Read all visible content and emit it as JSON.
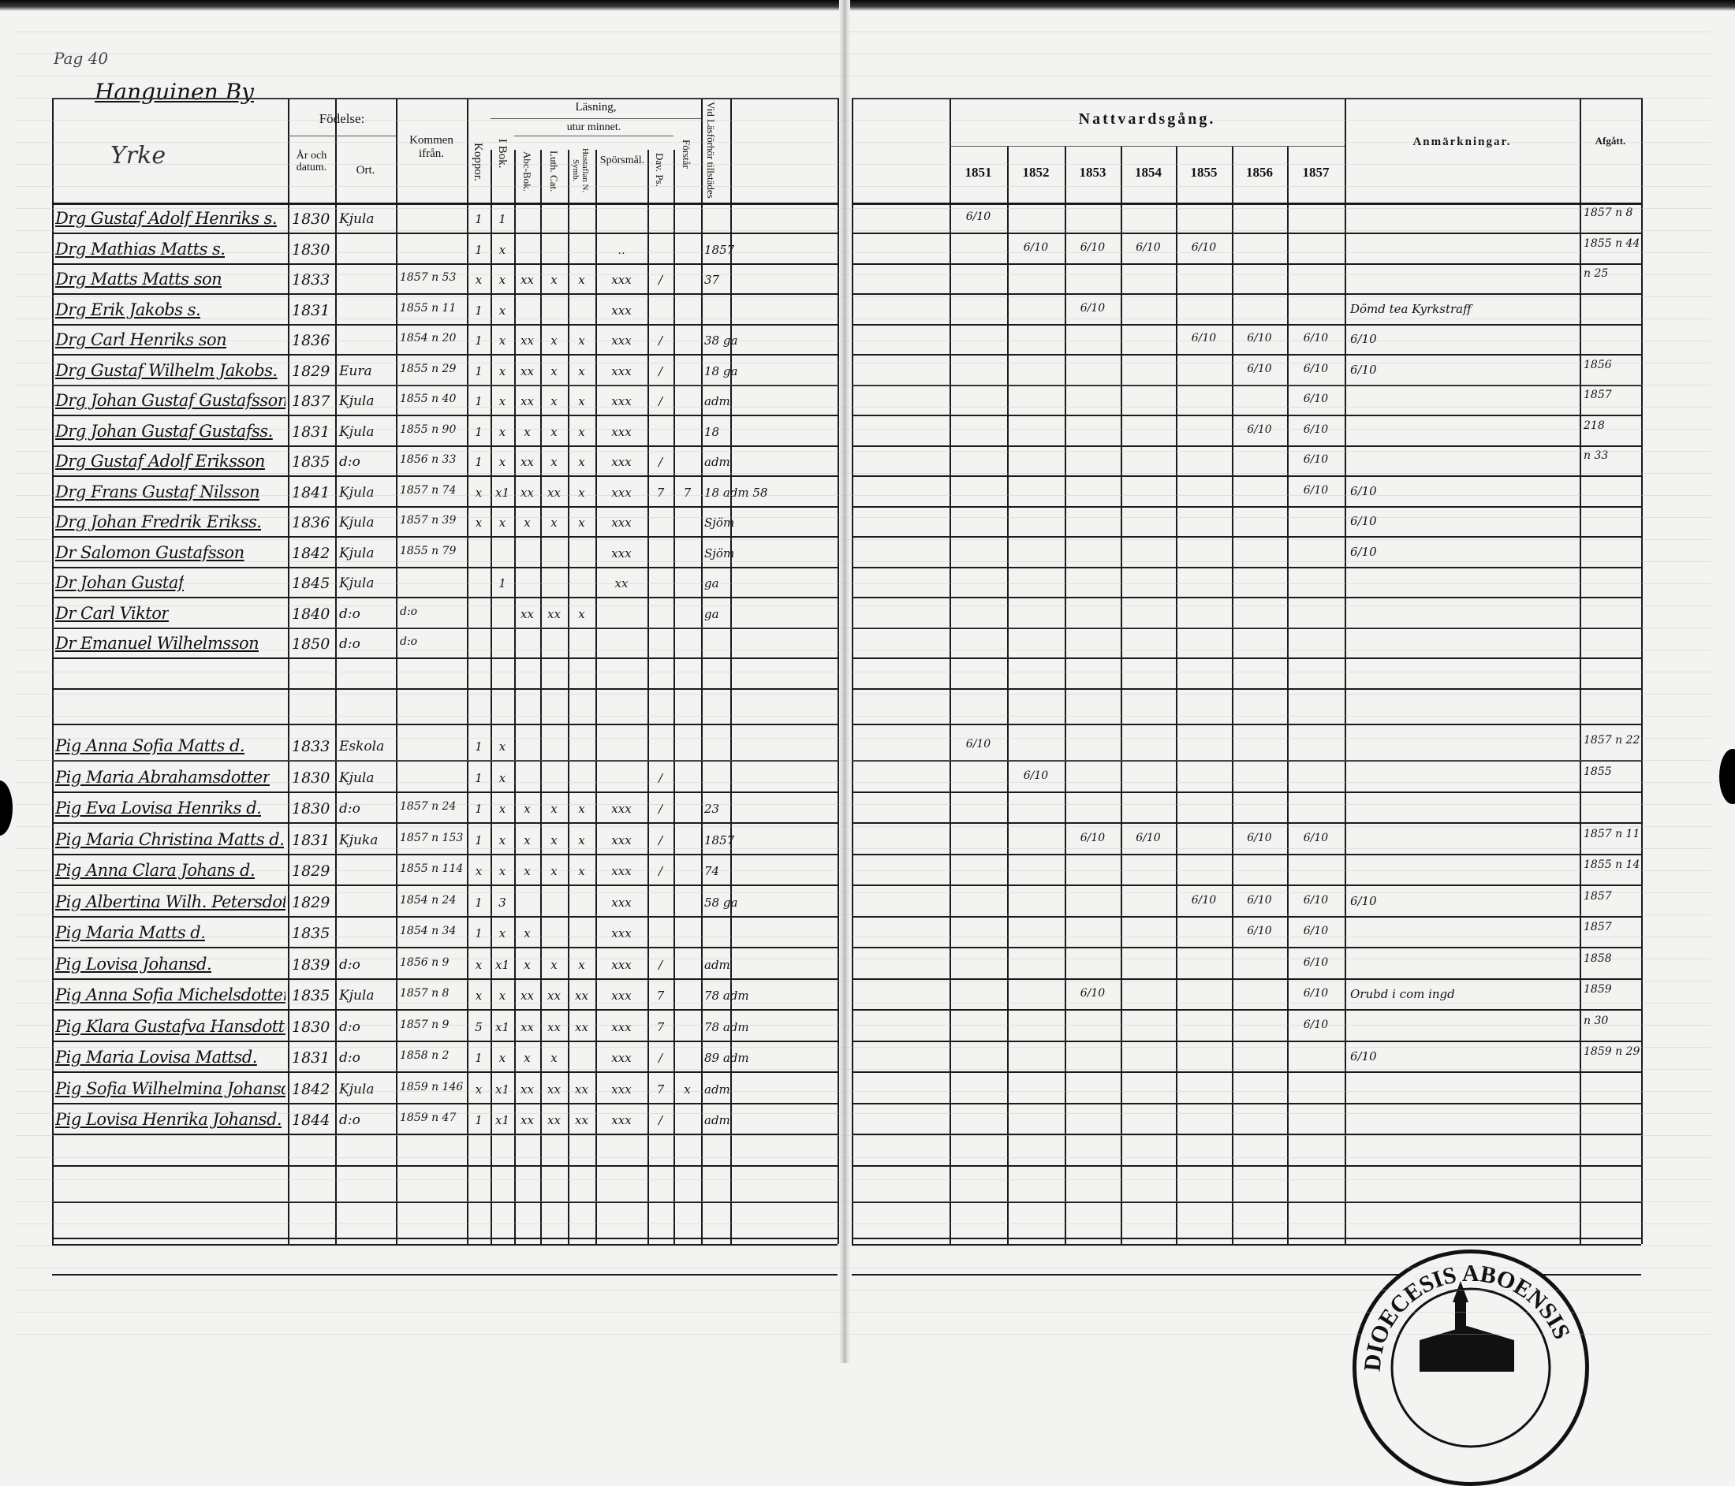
{
  "page": {
    "page_note": "Pag 40",
    "village": "Hanguinen By"
  },
  "left_header": {
    "yrke": "Yrke",
    "fodelse": "Födelse:",
    "ar_och_datum": "År och datum.",
    "ort": "Ort.",
    "kommen_ifran": "Kommen ifrån.",
    "koppor": "Koppor.",
    "lasning": "Läsning,",
    "i_bok": "I Bok.",
    "utur_minnet": "utur minnet.",
    "abc_bok": "Abc-Bok.",
    "luth_cat": "Luth. Cat.",
    "hustaflan": "Hustaflan N. Symb.",
    "sporsmal": "Spörsmål.",
    "dav_ps": "Dav. Ps.",
    "forstar": "Förstår",
    "vid_lasforhor": "Vid Läsförhör tillstädes"
  },
  "right_header": {
    "nattvardsgang": "Nattvardsgång.",
    "years": [
      "1851",
      "1852",
      "1853",
      "1854",
      "1855",
      "1856",
      "1857"
    ],
    "anmarkningar": "Anmärkningar.",
    "afgatt": "Afgått."
  },
  "men": [
    {
      "name": "Drg Gustaf Adolf Henriks s.",
      "born": "1830",
      "place": "Kjula",
      "arrived": "",
      "marks": [
        "1",
        "1",
        "",
        "",
        "",
        "",
        "",
        ""
      ],
      "vid": "",
      "nattvard": [
        "6/10",
        "",
        "",
        "",
        "",
        "",
        ""
      ],
      "remark": "",
      "afgatt": "1857 n 8"
    },
    {
      "name": "Drg Mathias Matts s.",
      "born": "1830",
      "place": "",
      "arrived": "",
      "marks": [
        "1",
        "x",
        "",
        "",
        "",
        "..",
        "",
        ""
      ],
      "vid": "1857",
      "nattvard": [
        "",
        "6/10",
        "6/10",
        "6/10",
        "6/10",
        "",
        ""
      ],
      "remark": "",
      "afgatt": "1855 n 44"
    },
    {
      "name": "Drg Matts Matts son",
      "born": "1833",
      "place": "",
      "arrived": "1857 n 53",
      "marks": [
        "x",
        "x",
        "xx",
        "x",
        "x",
        "xxx",
        "/",
        ""
      ],
      "vid": "37",
      "nattvard": [
        "",
        "",
        "",
        "",
        "",
        "",
        ""
      ],
      "remark": "",
      "afgatt": "n 25"
    },
    {
      "name": "Drg Erik Jakobs s.",
      "born": "1831",
      "place": "",
      "arrived": "1855 n 11",
      "marks": [
        "1",
        "x",
        "",
        "",
        "",
        "xxx",
        "",
        ""
      ],
      "vid": "",
      "nattvard": [
        "",
        "",
        "6/10",
        "",
        "",
        "",
        ""
      ],
      "remark": "Dömd tea Kyrkstraff",
      "afgatt": ""
    },
    {
      "name": "Drg Carl Henriks son",
      "born": "1836",
      "place": "",
      "arrived": "1854 n 20",
      "marks": [
        "1",
        "x",
        "xx",
        "x",
        "x",
        "xxx",
        "/",
        ""
      ],
      "vid": "38 ga",
      "nattvard": [
        "",
        "",
        "",
        "",
        "6/10",
        "6/10",
        "6/10"
      ],
      "remark": "6/10",
      "afgatt": ""
    },
    {
      "name": "Drg Gustaf Wilhelm Jakobs.",
      "born": "1829",
      "place": "Eura",
      "arrived": "1855 n 29",
      "marks": [
        "1",
        "x",
        "xx",
        "x",
        "x",
        "xxx",
        "/",
        ""
      ],
      "vid": "18 ga",
      "nattvard": [
        "",
        "",
        "",
        "",
        "",
        "6/10",
        "6/10"
      ],
      "remark": "6/10",
      "afgatt": "1856"
    },
    {
      "name": "Drg Johan Gustaf Gustafsson",
      "born": "1837",
      "place": "Kjula",
      "arrived": "1855 n 40",
      "marks": [
        "1",
        "x",
        "xx",
        "x",
        "x",
        "xxx",
        "/",
        ""
      ],
      "vid": "adm",
      "nattvard": [
        "",
        "",
        "",
        "",
        "",
        "",
        "6/10"
      ],
      "remark": "",
      "afgatt": "1857"
    },
    {
      "name": "Drg Johan Gustaf Gustafss.",
      "born": "1831",
      "place": "Kjula",
      "arrived": "1855 n 90",
      "marks": [
        "1",
        "x",
        "x",
        "x",
        "x",
        "xxx",
        "",
        ""
      ],
      "vid": "18",
      "nattvard": [
        "",
        "",
        "",
        "",
        "",
        "6/10",
        "6/10"
      ],
      "remark": "",
      "afgatt": "218"
    },
    {
      "name": "Drg Gustaf Adolf Eriksson",
      "born": "1835",
      "place": "d:o",
      "arrived": "1856 n 33",
      "marks": [
        "1",
        "x",
        "xx",
        "x",
        "x",
        "xxx",
        "/",
        ""
      ],
      "vid": "adm",
      "nattvard": [
        "",
        "",
        "",
        "",
        "",
        "",
        "6/10"
      ],
      "remark": "",
      "afgatt": "n 33"
    },
    {
      "name": "Drg Frans Gustaf Nilsson",
      "born": "1841",
      "place": "Kjula",
      "arrived": "1857 n 74",
      "marks": [
        "x",
        "x1",
        "xx",
        "xx",
        "x",
        "xxx",
        "7",
        "7"
      ],
      "vid": "18 adm 58",
      "nattvard": [
        "",
        "",
        "",
        "",
        "",
        "",
        "6/10"
      ],
      "remark": "6/10",
      "afgatt": ""
    },
    {
      "name": "Drg Johan Fredrik Erikss.",
      "born": "1836",
      "place": "Kjula",
      "arrived": "1857 n 39",
      "marks": [
        "x",
        "x",
        "x",
        "x",
        "x",
        "xxx",
        "",
        ""
      ],
      "vid": "Sjöm",
      "nattvard": [
        "",
        "",
        "",
        "",
        "",
        "",
        ""
      ],
      "remark": "6/10",
      "afgatt": ""
    },
    {
      "name": "Dr Salomon Gustafsson",
      "born": "1842",
      "place": "Kjula",
      "arrived": "1855 n 79",
      "marks": [
        "",
        "",
        "",
        "",
        "",
        "xxx",
        "",
        ""
      ],
      "vid": "Sjöm",
      "nattvard": [
        "",
        "",
        "",
        "",
        "",
        "",
        ""
      ],
      "remark": "6/10",
      "afgatt": ""
    },
    {
      "name": "Dr Johan Gustaf",
      "born": "1845",
      "place": "Kjula",
      "arrived": "",
      "marks": [
        "",
        "1",
        "",
        "",
        "",
        "xx",
        "",
        ""
      ],
      "vid": "ga",
      "nattvard": [
        "",
        "",
        "",
        "",
        "",
        "",
        ""
      ],
      "remark": "",
      "afgatt": ""
    },
    {
      "name": "Dr Carl Viktor",
      "born": "1840",
      "place": "d:o",
      "arrived": "d:o",
      "marks": [
        "",
        "",
        "xx",
        "xx",
        "x",
        "",
        "",
        ""
      ],
      "vid": "ga",
      "nattvard": [
        "",
        "",
        "",
        "",
        "",
        "",
        ""
      ],
      "remark": "",
      "afgatt": ""
    },
    {
      "name": "Dr Emanuel Wilhelmsson",
      "born": "1850",
      "place": "d:o",
      "arrived": "d:o",
      "marks": [
        "",
        "",
        "",
        "",
        "",
        "",
        "",
        ""
      ],
      "vid": "",
      "nattvard": [
        "",
        "",
        "",
        "",
        "",
        "",
        ""
      ],
      "remark": "",
      "afgatt": ""
    }
  ],
  "women": [
    {
      "name": "Pig Anna Sofia Matts d.",
      "born": "1833",
      "place": "Eskola",
      "arrived": "",
      "marks": [
        "1",
        "x",
        "",
        "",
        "",
        "",
        "",
        ""
      ],
      "vid": "",
      "nattvard": [
        "6/10",
        "",
        "",
        "",
        "",
        "",
        ""
      ],
      "remark": "",
      "afgatt": "1857 n 22"
    },
    {
      "name": "Pig Maria Abrahamsdotter",
      "born": "1830",
      "place": "Kjula",
      "arrived": "",
      "marks": [
        "1",
        "x",
        "",
        "",
        "",
        "",
        "/",
        ""
      ],
      "vid": "",
      "nattvard": [
        "",
        "6/10",
        "",
        "",
        "",
        "",
        ""
      ],
      "remark": "",
      "afgatt": "1855"
    },
    {
      "name": "Pig Eva Lovisa Henriks d.",
      "born": "1830",
      "place": "d:o",
      "arrived": "1857 n 24",
      "marks": [
        "1",
        "x",
        "x",
        "x",
        "x",
        "xxx",
        "/",
        ""
      ],
      "vid": "23",
      "nattvard": [
        "",
        "",
        "",
        "",
        "",
        "",
        ""
      ],
      "remark": "",
      "afgatt": ""
    },
    {
      "name": "Pig Maria Christina Matts d.",
      "born": "1831",
      "place": "Kjuka",
      "arrived": "1857 n 153",
      "marks": [
        "1",
        "x",
        "x",
        "x",
        "x",
        "xxx",
        "/",
        ""
      ],
      "vid": "1857",
      "nattvard": [
        "",
        "",
        "6/10",
        "6/10",
        "",
        "6/10",
        "6/10"
      ],
      "remark": "",
      "afgatt": "1857 n 11"
    },
    {
      "name": "Pig Anna Clara Johans d.",
      "born": "1829",
      "place": "",
      "arrived": "1855 n 114",
      "marks": [
        "x",
        "x",
        "x",
        "x",
        "x",
        "xxx",
        "/",
        ""
      ],
      "vid": "74",
      "nattvard": [
        "",
        "",
        "",
        "",
        "",
        "",
        ""
      ],
      "remark": "",
      "afgatt": "1855 n 14"
    },
    {
      "name": "Pig Albertina Wilh. Petersdotter",
      "born": "1829",
      "place": "",
      "arrived": "1854 n 24",
      "marks": [
        "1",
        "3",
        "",
        "",
        "",
        "xxx",
        "",
        ""
      ],
      "vid": "58 ga",
      "nattvard": [
        "",
        "",
        "",
        "",
        "6/10",
        "6/10",
        "6/10"
      ],
      "remark": "6/10",
      "afgatt": "1857"
    },
    {
      "name": "Pig Maria Matts d.",
      "born": "1835",
      "place": "",
      "arrived": "1854 n 34",
      "marks": [
        "1",
        "x",
        "x",
        "",
        "",
        "xxx",
        "",
        ""
      ],
      "vid": "",
      "nattvard": [
        "",
        "",
        "",
        "",
        "",
        "6/10",
        "6/10"
      ],
      "remark": "",
      "afgatt": "1857"
    },
    {
      "name": "Pig Lovisa Johansd.",
      "born": "1839",
      "place": "d:o",
      "arrived": "1856 n 9",
      "marks": [
        "x",
        "x1",
        "x",
        "x",
        "x",
        "xxx",
        "/",
        ""
      ],
      "vid": "adm",
      "nattvard": [
        "",
        "",
        "",
        "",
        "",
        "",
        "6/10"
      ],
      "remark": "",
      "afgatt": "1858"
    },
    {
      "name": "Pig Anna Sofia Michelsdotter",
      "born": "1835",
      "place": "Kjula",
      "arrived": "1857 n 8",
      "marks": [
        "x",
        "x",
        "xx",
        "xx",
        "xx",
        "xxx",
        "7",
        ""
      ],
      "vid": "78 adm",
      "nattvard": [
        "",
        "",
        "6/10",
        "",
        "",
        "",
        "6/10"
      ],
      "remark": "Orubd i com ingd",
      "afgatt": "1859"
    },
    {
      "name": "Pig Klara Gustafva Hansdotter",
      "born": "1830",
      "place": "d:o",
      "arrived": "1857 n 9",
      "marks": [
        "5",
        "x1",
        "xx",
        "xx",
        "xx",
        "xxx",
        "7",
        ""
      ],
      "vid": "78 adm",
      "nattvard": [
        "",
        "",
        "",
        "",
        "",
        "",
        "6/10"
      ],
      "remark": "",
      "afgatt": "n 30"
    },
    {
      "name": "Pig Maria Lovisa Mattsd.",
      "born": "1831",
      "place": "d:o",
      "arrived": "1858 n 2",
      "marks": [
        "1",
        "x",
        "x",
        "x",
        "",
        "xxx",
        "/",
        ""
      ],
      "vid": "89 adm",
      "nattvard": [
        "",
        "",
        "",
        "",
        "",
        "",
        ""
      ],
      "remark": "6/10",
      "afgatt": "1859 n 29"
    },
    {
      "name": "Pig Sofia Wilhelmina Johansd.",
      "born": "1842",
      "place": "Kjula",
      "arrived": "1859 n 146",
      "marks": [
        "x",
        "x1",
        "xx",
        "xx",
        "xx",
        "xxx",
        "7",
        "x"
      ],
      "vid": "adm",
      "nattvard": [
        "",
        "",
        "",
        "",
        "",
        "",
        ""
      ],
      "remark": "",
      "afgatt": ""
    },
    {
      "name": "Pig Lovisa Henrika Johansd.",
      "born": "1844",
      "place": "d:o",
      "arrived": "1859 n 47",
      "marks": [
        "1",
        "x1",
        "xx",
        "xx",
        "xx",
        "xxx",
        "/",
        ""
      ],
      "vid": "adm",
      "nattvard": [
        "",
        "",
        "",
        "",
        "",
        "",
        ""
      ],
      "remark": "",
      "afgatt": ""
    }
  ],
  "seal": {
    "text": "DIOECESIS ABOENSIS"
  }
}
